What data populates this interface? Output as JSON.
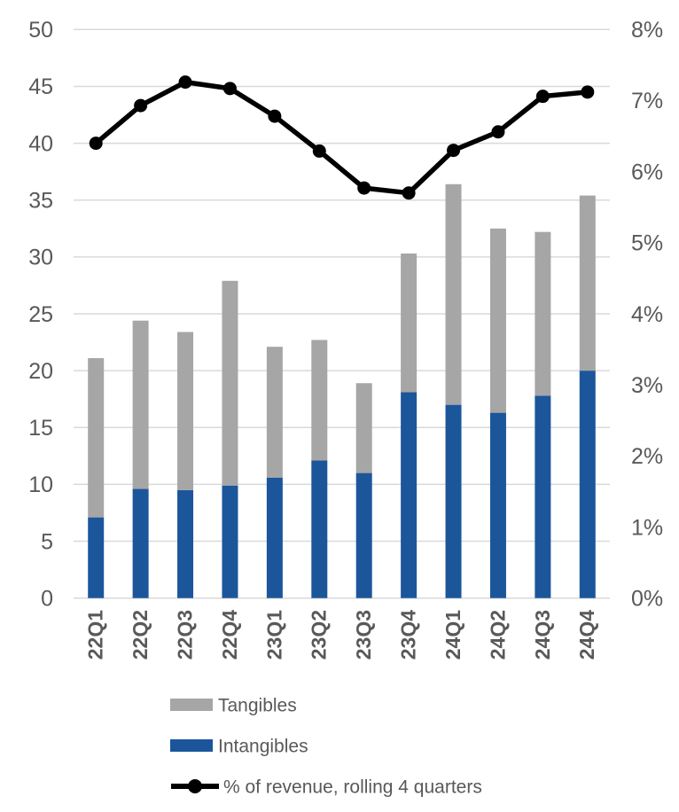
{
  "chart_data": {
    "type": "combo",
    "categories": [
      "22Q1",
      "22Q2",
      "22Q3",
      "22Q4",
      "23Q1",
      "23Q2",
      "23Q3",
      "23Q4",
      "24Q1",
      "24Q2",
      "24Q3",
      "24Q4"
    ],
    "series": [
      {
        "name": "Tangibles",
        "type": "bar",
        "stack_position": "top",
        "color": "#a6a6a6",
        "values": [
          14.0,
          14.8,
          13.9,
          18.0,
          11.5,
          10.6,
          7.9,
          12.2,
          19.4,
          16.2,
          14.4,
          15.4
        ]
      },
      {
        "name": "Intangibles",
        "type": "bar",
        "stack_position": "bottom",
        "color": "#1b569b",
        "values": [
          7.1,
          9.6,
          9.5,
          9.9,
          10.6,
          12.1,
          11.0,
          18.1,
          17.0,
          16.3,
          17.8,
          20.0
        ]
      },
      {
        "name": "% of revenue, rolling 4 quarters",
        "type": "line",
        "axis": "right",
        "color": "#000000",
        "values": [
          6.4,
          6.93,
          7.26,
          7.17,
          6.78,
          6.29,
          5.77,
          5.7,
          6.3,
          6.56,
          7.06,
          7.12
        ]
      }
    ],
    "stacked_totals": [
      21.1,
      24.4,
      23.4,
      27.9,
      22.1,
      22.7,
      18.9,
      30.3,
      36.4,
      32.5,
      32.2,
      35.4
    ],
    "left_axis": {
      "min": 0,
      "max": 50,
      "step": 5,
      "ticks": [
        "0",
        "5",
        "10",
        "15",
        "20",
        "25",
        "30",
        "35",
        "40",
        "45",
        "50"
      ]
    },
    "right_axis": {
      "min": 0,
      "max": 8,
      "step": 1,
      "ticks": [
        "0%",
        "1%",
        "2%",
        "3%",
        "4%",
        "5%",
        "6%",
        "7%",
        "8%"
      ]
    },
    "grid": true,
    "gridline_color": "#d9d9d9",
    "axis_text_color": "#595959",
    "legend_position": "bottom-left",
    "title": "",
    "xlabel": "",
    "ylabel": ""
  },
  "legend": {
    "tangibles_label": "Tangibles",
    "intangibles_label": "Intangibles",
    "revenue_line_label": "% of revenue, rolling 4 quarters"
  }
}
